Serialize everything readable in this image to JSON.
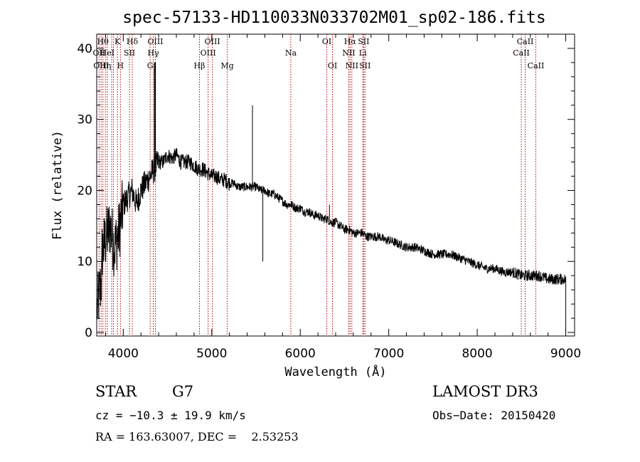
{
  "chart_data": {
    "type": "line",
    "title": "spec-57133-HD110033N033702M01_sp02-186.fits",
    "xlabel": "Wavelength (Å)",
    "ylabel": "Flux (relative)",
    "xlim": [
      3700,
      9100
    ],
    "ylim": [
      -0.5,
      42
    ],
    "xticks": [
      4000,
      5000,
      6000,
      7000,
      8000,
      9000
    ],
    "yticks": [
      0,
      10,
      20,
      30,
      40
    ],
    "series": [
      {
        "name": "spectrum",
        "x": [
          3700,
          3750,
          3800,
          3850,
          3900,
          3950,
          4000,
          4050,
          4100,
          4150,
          4200,
          4250,
          4300,
          4350,
          4400,
          4450,
          4500,
          4550,
          4600,
          4650,
          4700,
          4750,
          4800,
          4850,
          4900,
          4950,
          5000,
          5050,
          5100,
          5150,
          5200,
          5250,
          5300,
          5350,
          5400,
          5450,
          5500,
          5550,
          5600,
          5650,
          5700,
          5750,
          5800,
          5850,
          5900,
          5950,
          6000,
          6050,
          6100,
          6150,
          6200,
          6250,
          6300,
          6350,
          6400,
          6450,
          6500,
          6550,
          6600,
          6650,
          6700,
          6750,
          6800,
          6850,
          6900,
          6950,
          7000,
          7100,
          7200,
          7300,
          7400,
          7500,
          7600,
          7700,
          7800,
          7900,
          8000,
          8100,
          8200,
          8300,
          8400,
          8500,
          8600,
          8700,
          8800,
          8900,
          9000
        ],
        "y": [
          7,
          11,
          13,
          15,
          12,
          14,
          18,
          19,
          20,
          18,
          20,
          21,
          22,
          23,
          24,
          24,
          25,
          24.5,
          25,
          24,
          24,
          24,
          23.5,
          23,
          23,
          22.5,
          22,
          22,
          21.5,
          21.5,
          21,
          21,
          20.5,
          20.5,
          20.5,
          20.5,
          20.5,
          20,
          20,
          19.5,
          19.5,
          19,
          18.5,
          18,
          18,
          17.5,
          17.5,
          17,
          17,
          16.5,
          16.5,
          16,
          16,
          15.5,
          15.5,
          15,
          14.5,
          14.5,
          14,
          14,
          14,
          13.5,
          13.5,
          13.5,
          13.5,
          13,
          13,
          12.5,
          12,
          12,
          11.5,
          11,
          11,
          11,
          10.5,
          10,
          9.5,
          9,
          9,
          8.5,
          8.5,
          8,
          8,
          8,
          7.5,
          7.5,
          7.5
        ]
      }
    ],
    "spikes": [
      {
        "x": 5460,
        "y": 32
      },
      {
        "x": 5577,
        "y": 10
      },
      {
        "x": 4358,
        "y": 38
      },
      {
        "x": 6330,
        "y": 18
      }
    ],
    "lines": [
      {
        "x": 3727,
        "label": "OII",
        "row": 2
      },
      {
        "x": 3750,
        "label": "OIII",
        "row": 3
      },
      {
        "x": 3770,
        "label": "Hθ",
        "row": 1
      },
      {
        "x": 3798,
        "label": "Hη",
        "row": 3
      },
      {
        "x": 3820,
        "label": "HeI",
        "row": 2
      },
      {
        "x": 3869,
        "label": "",
        "row": 0
      },
      {
        "x": 3889,
        "label": "",
        "row": 0
      },
      {
        "x": 3934,
        "label": "K",
        "row": 1
      },
      {
        "x": 3968,
        "label": "H",
        "row": 3
      },
      {
        "x": 4070,
        "label": "SII",
        "row": 2
      },
      {
        "x": 4102,
        "label": "Hδ",
        "row": 1
      },
      {
        "x": 4304,
        "label": "G",
        "row": 3
      },
      {
        "x": 4340,
        "label": "Hγ",
        "row": 2
      },
      {
        "x": 4363,
        "label": "OIII",
        "row": 1
      },
      {
        "x": 4861,
        "label": "Hβ",
        "row": 3
      },
      {
        "x": 4959,
        "label": "OIII",
        "row": 2
      },
      {
        "x": 5007,
        "label": "OIII",
        "row": 1
      },
      {
        "x": 5175,
        "label": "Mg",
        "row": 3
      },
      {
        "x": 5893,
        "label": "Na",
        "row": 2
      },
      {
        "x": 6300,
        "label": "OI",
        "row": 1
      },
      {
        "x": 6364,
        "label": "OI",
        "row": 3
      },
      {
        "x": 6548,
        "label": "NII",
        "row": 2
      },
      {
        "x": 6563,
        "label": "Hα",
        "row": 1
      },
      {
        "x": 6583,
        "label": "NII",
        "row": 3
      },
      {
        "x": 6707,
        "label": "Li",
        "row": 2
      },
      {
        "x": 6716,
        "label": "SII",
        "row": 1
      },
      {
        "x": 6731,
        "label": "SII",
        "row": 3
      },
      {
        "x": 8498,
        "label": "CaII",
        "row": 2
      },
      {
        "x": 8542,
        "label": "CaII",
        "row": 1
      },
      {
        "x": 8662,
        "label": "CaII",
        "row": 3
      }
    ]
  },
  "info": {
    "object_class": "STAR",
    "subclass": "G7",
    "survey": "LAMOST DR3",
    "cz": "cz = −10.3 ± 19.9 km/s",
    "obs_date": "Obs−Date: 20150420",
    "coords": "RA = 163.63007, DEC =    2.53253"
  },
  "colors": {
    "spectrum": "#000000",
    "line_marker": "#b00000",
    "axes": "#000000",
    "background": "#ffffff"
  }
}
